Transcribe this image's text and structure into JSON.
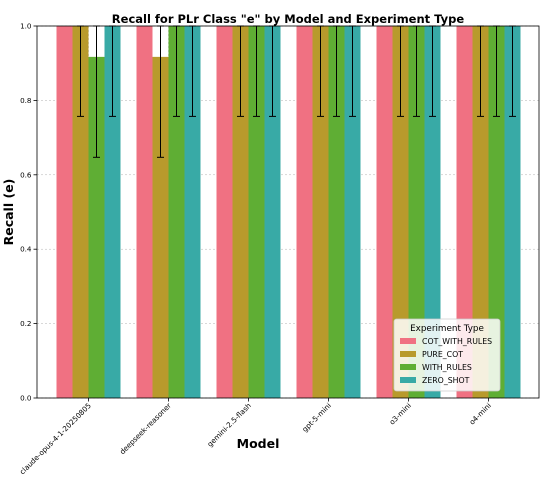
{
  "chart_data": {
    "type": "bar",
    "title": "Recall for PLr Class \"e\" by Model and Experiment Type",
    "xlabel": "Model",
    "ylabel": "Recall (e)",
    "ylim": [
      0,
      1.0
    ],
    "yticks": [
      "0.0",
      "0.2",
      "0.4",
      "0.6",
      "0.8",
      "1.0"
    ],
    "grid": true,
    "legend": {
      "title": "Experiment Type",
      "position": "lower-right"
    },
    "categories": [
      "claude-opus-4-1-20250805",
      "deepseek-reasoner",
      "gemini-2.5-flash",
      "gpt-5-mini",
      "o3-mini",
      "o4-mini"
    ],
    "series": [
      {
        "name": "COT_WITH_RULES",
        "color": "#f07182",
        "values": [
          1.0,
          1.0,
          1.0,
          1.0,
          1.0,
          1.0
        ],
        "errors": [
          0,
          0,
          0,
          0,
          0,
          0
        ]
      },
      {
        "name": "PURE_COT",
        "color": "#b89a2c",
        "values": [
          1.0,
          0.917,
          1.0,
          1.0,
          1.0,
          1.0
        ],
        "errors": [
          0.243,
          0.27,
          0.243,
          0.243,
          0.243,
          0.243
        ]
      },
      {
        "name": "WITH_RULES",
        "color": "#5fae34",
        "values": [
          0.917,
          1.0,
          1.0,
          1.0,
          1.0,
          1.0
        ],
        "errors": [
          0.27,
          0.243,
          0.243,
          0.243,
          0.243,
          0.243
        ]
      },
      {
        "name": "ZERO_SHOT",
        "color": "#38aaa6",
        "values": [
          1.0,
          1.0,
          1.0,
          1.0,
          1.0,
          1.0
        ],
        "errors": [
          0.243,
          0.243,
          0.243,
          0.243,
          0.243,
          0.243
        ]
      }
    ]
  }
}
